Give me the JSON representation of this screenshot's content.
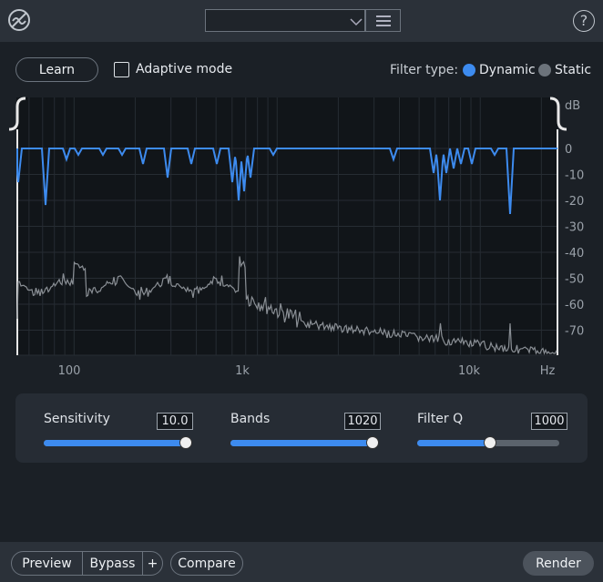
{
  "toolbar": {
    "help": "?"
  },
  "controls": {
    "learn": "Learn",
    "adaptive_mode": "Adaptive mode",
    "filter_type_label": "Filter type:",
    "filter_options": [
      "Dynamic",
      "Static"
    ]
  },
  "graph": {
    "db_unit": "dB",
    "db_labels": [
      "0",
      "-10",
      "-20",
      "-30",
      "-40",
      "-50",
      "-60",
      "-70"
    ],
    "freq_labels": [
      "100",
      "1k",
      "10k"
    ],
    "freq_unit": "Hz"
  },
  "parameters": [
    {
      "label": "Sensitivity",
      "value": "10.0"
    },
    {
      "label": "Bands",
      "value": "1020"
    },
    {
      "label": "Filter Q",
      "value": "1000"
    }
  ],
  "footer": {
    "preview": "Preview",
    "bypass": "Bypass",
    "add": "+",
    "compare": "Compare",
    "render": "Render"
  }
}
